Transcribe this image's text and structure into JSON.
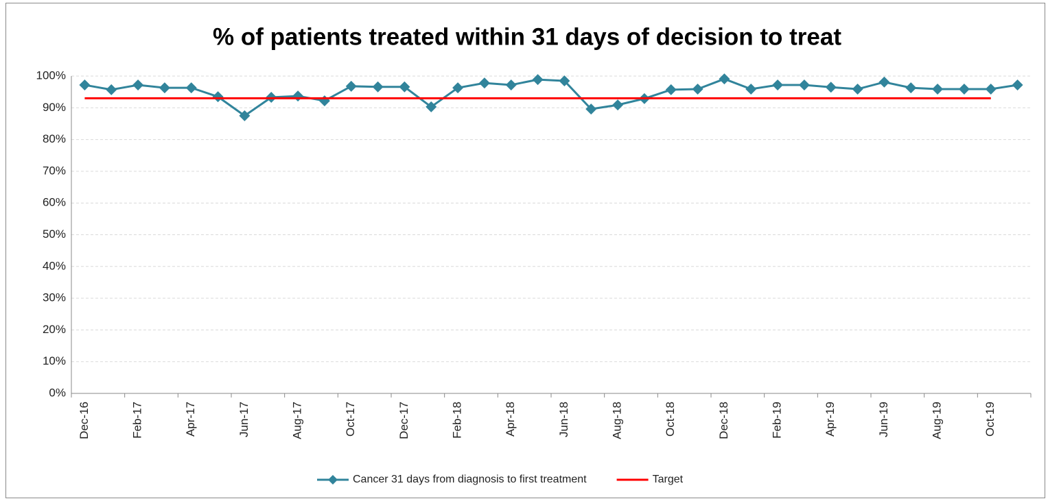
{
  "chart_data": {
    "type": "line",
    "title": "% of patients treated within 31 days of decision to treat",
    "categories": [
      "Dec-16",
      null,
      "Feb-17",
      null,
      "Apr-17",
      null,
      "Jun-17",
      null,
      "Aug-17",
      null,
      "Oct-17",
      null,
      "Dec-17",
      null,
      "Feb-18",
      null,
      "Apr-18",
      null,
      "Jun-18",
      null,
      "Aug-18",
      null,
      "Oct-18",
      null,
      "Dec-18",
      null,
      "Feb-19",
      null,
      "Apr-19",
      null,
      "Jun-19",
      null,
      "Aug-19",
      null,
      "Oct-19",
      null
    ],
    "series": [
      {
        "name": "Cancer 31 days from diagnosis to first treatment",
        "color": "#31849b",
        "marker": "diamond",
        "values": [
          97.2,
          95.7,
          97.2,
          96.3,
          96.3,
          93.5,
          87.5,
          93.3,
          93.7,
          92.2,
          96.8,
          96.6,
          96.6,
          90.3,
          96.3,
          97.8,
          97.2,
          98.9,
          98.5,
          89.6,
          90.9,
          92.9,
          95.7,
          95.9,
          99.1,
          95.9,
          97.2,
          97.2,
          96.5,
          95.9,
          98.1,
          96.3,
          95.9,
          95.9,
          95.9,
          97.2
        ]
      },
      {
        "name": "Target",
        "color": "#ff0000",
        "values": [
          93,
          93,
          93,
          93,
          93,
          93,
          93,
          93,
          93,
          93,
          93,
          93,
          93,
          93,
          93,
          93,
          93,
          93,
          93,
          93,
          93,
          93,
          93,
          93,
          93,
          93,
          93,
          93,
          93,
          93,
          93,
          93,
          93,
          93,
          93,
          null
        ]
      }
    ],
    "ylim": [
      0,
      100
    ],
    "yticks": [
      {
        "value": 0,
        "label": "0%"
      },
      {
        "value": 10,
        "label": "10%"
      },
      {
        "value": 20,
        "label": "20%"
      },
      {
        "value": 30,
        "label": "30%"
      },
      {
        "value": 40,
        "label": "40%"
      },
      {
        "value": 50,
        "label": "50%"
      },
      {
        "value": 60,
        "label": "60%"
      },
      {
        "value": 70,
        "label": "70%"
      },
      {
        "value": 80,
        "label": "80%"
      },
      {
        "value": 90,
        "label": "90%"
      },
      {
        "value": 100,
        "label": "100%"
      }
    ],
    "grid": true,
    "legend": "bottom"
  }
}
